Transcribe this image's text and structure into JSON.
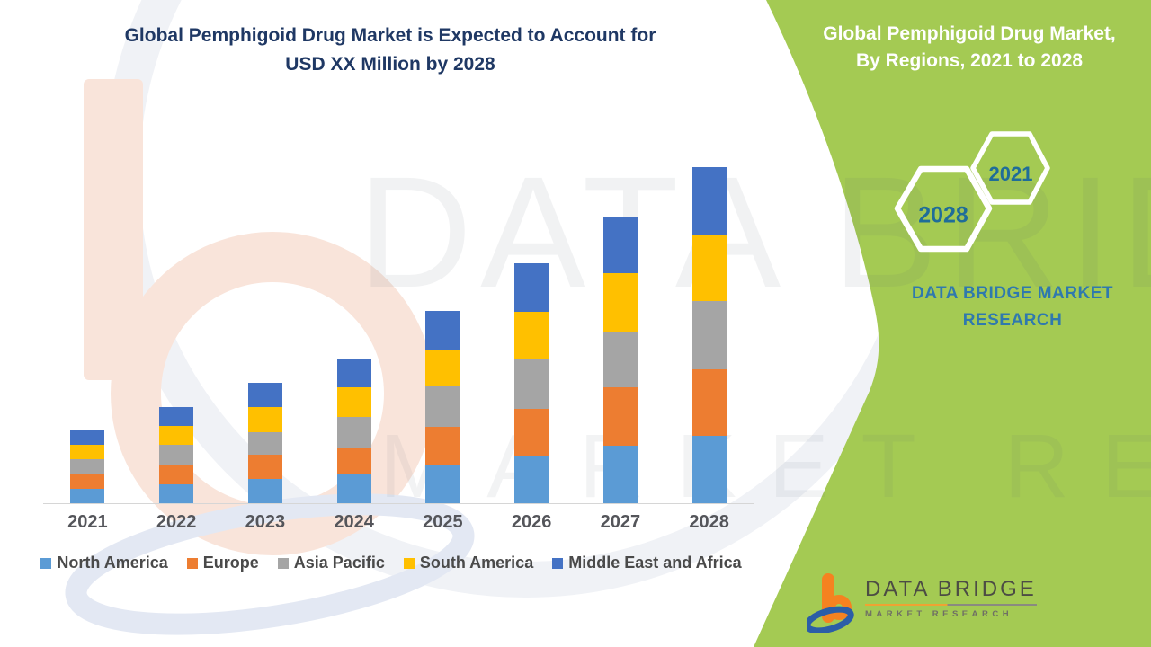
{
  "title": {
    "line1": "Global Pemphigoid Drug Market is Expected to Account for",
    "line2": "USD XX Million by 2028"
  },
  "panel": {
    "heading_line1": "Global Pemphigoid Drug Market,",
    "heading_line2": "By Regions, 2021 to 2028",
    "hexagons": [
      {
        "label": "2021"
      },
      {
        "label": "2028"
      }
    ],
    "brand_line1": "DATA BRIDGE MARKET",
    "brand_line2": "RESEARCH",
    "bg_color": "#a4ca53",
    "heading_color": "#ffffff",
    "brand_text_color": "#2f79ae",
    "hexagon_year_color": "#1f6d99"
  },
  "watermark": {
    "row1": "DATA BRIDGE",
    "row2": "MARKET RESEARCH"
  },
  "footer_logo": {
    "name": "DATA BRIDGE",
    "subtitle": "MARKET RESEARCH"
  },
  "chart_data": {
    "type": "bar",
    "stacked": true,
    "title": "Global Pemphigoid Drug Market is Expected to Account for USD XX Million by 2028",
    "xlabel": "",
    "ylabel": "",
    "units": "relative units (y-axis unlabeled; market value shown as USD XX Million)",
    "grid": false,
    "legend_position": "bottom",
    "categories": [
      "2021",
      "2022",
      "2023",
      "2024",
      "2025",
      "2026",
      "2027",
      "2028"
    ],
    "series": [
      {
        "name": "North America",
        "color": "#5B9BD5",
        "values": [
          16,
          21,
          27,
          32,
          42,
          53,
          64,
          75
        ]
      },
      {
        "name": "Europe",
        "color": "#ED7D31",
        "values": [
          17,
          22,
          27,
          30,
          43,
          52,
          65,
          74
        ]
      },
      {
        "name": "Asia Pacific",
        "color": "#A5A5A5",
        "values": [
          16,
          22,
          25,
          34,
          45,
          55,
          62,
          76
        ]
      },
      {
        "name": "South America",
        "color": "#FFC000",
        "values": [
          16,
          21,
          28,
          33,
          40,
          53,
          65,
          74
        ]
      },
      {
        "name": "Middle East and Africa",
        "color": "#4472C4",
        "values": [
          16,
          21,
          27,
          32,
          44,
          54,
          63,
          75
        ]
      }
    ],
    "totals": [
      81,
      107,
      134,
      161,
      214,
      267,
      319,
      374
    ],
    "ylim": [
      0,
      400
    ]
  }
}
